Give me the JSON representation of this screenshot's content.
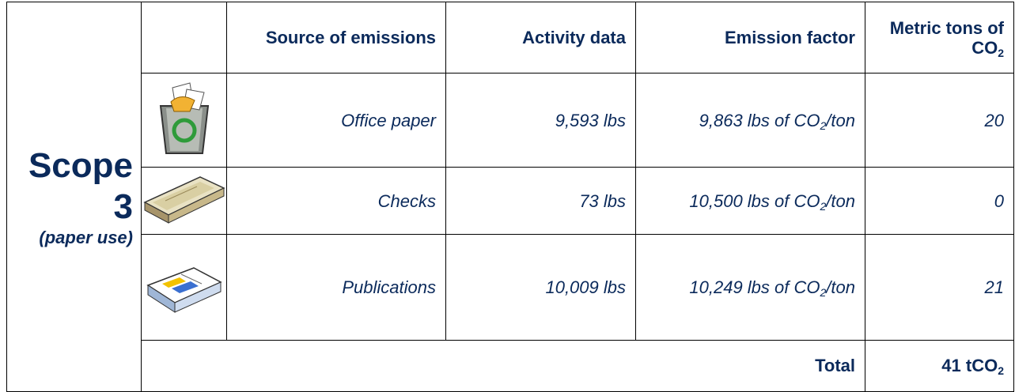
{
  "table": {
    "scope": {
      "label": "Scope",
      "number": "3",
      "note": "(paper use)"
    },
    "header": [
      "Source of emissions",
      "Activity data",
      "Emission factor",
      {
        "before": "Metric tons of CO",
        "sub": "2",
        "after": ""
      }
    ],
    "rows": [
      {
        "source": "Office paper",
        "activity": "9,593 lbs",
        "factor": {
          "before": "9,863 lbs of CO",
          "sub": "2",
          "after": "/ton"
        },
        "tons": "20"
      },
      {
        "source": "Checks",
        "activity": "73 lbs",
        "factor": {
          "before": "10,500 lbs of CO",
          "sub": "2",
          "after": "/ton"
        },
        "tons": "0"
      },
      {
        "source": "Publications",
        "activity": "10,009 lbs",
        "factor": {
          "before": "10,249 lbs of CO",
          "sub": "2",
          "after": "/ton"
        },
        "tons": "21"
      }
    ],
    "total": {
      "label": "Total",
      "value": {
        "before": "41 tCO",
        "sub": "2",
        "after": ""
      }
    }
  }
}
